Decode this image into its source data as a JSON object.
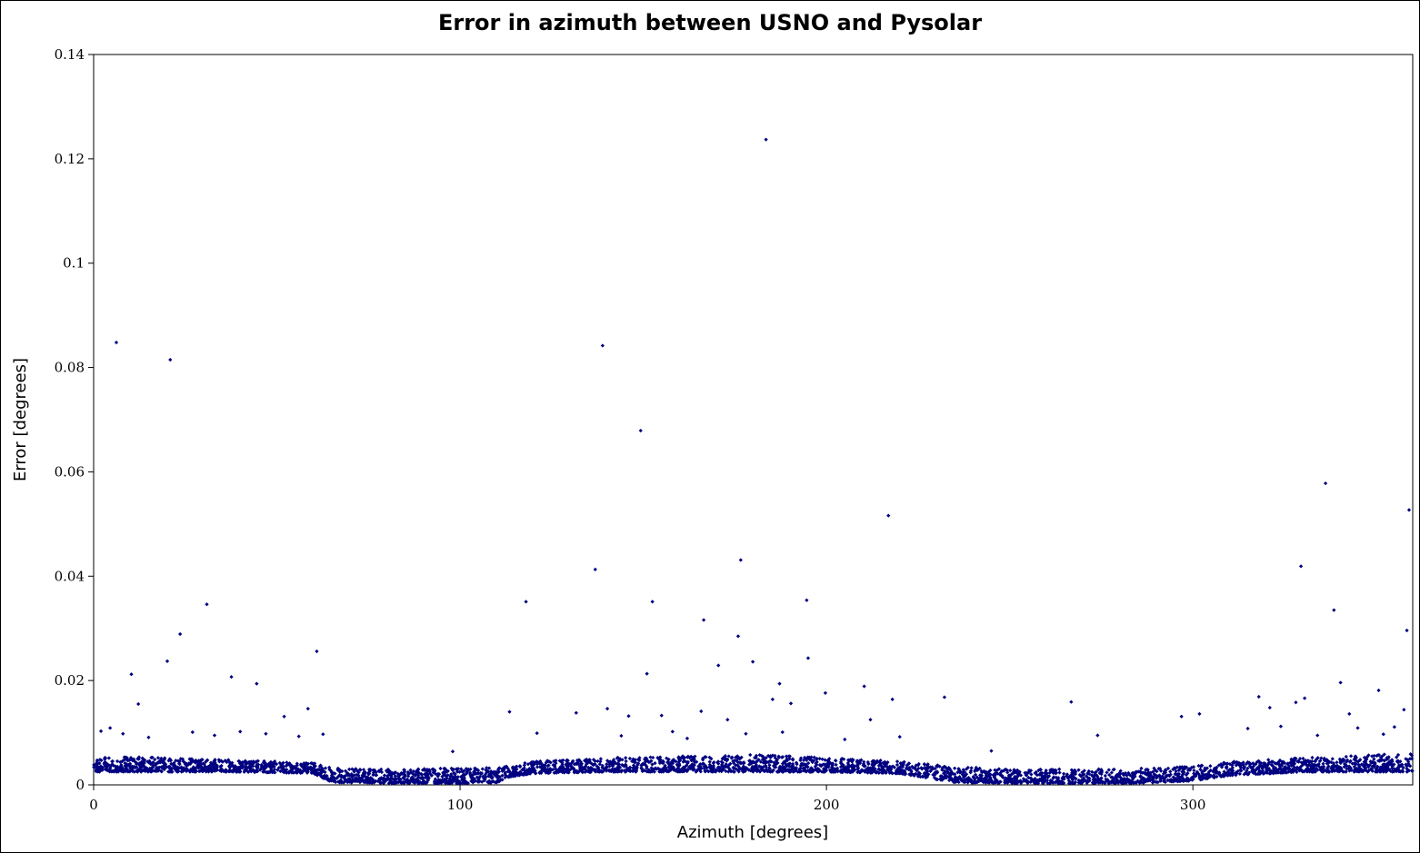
{
  "chart_data": {
    "type": "scatter",
    "title": "Error in azimuth between USNO and Pysolar",
    "xlabel": "Azimuth [degrees]",
    "ylabel": "Error [degrees]",
    "xlim": [
      0,
      360
    ],
    "ylim": [
      0,
      0.14
    ],
    "x_ticks": [
      0,
      100,
      200,
      300
    ],
    "x_tick_labels": [
      "0",
      "100",
      "200",
      "300"
    ],
    "y_ticks": [
      0,
      0.02,
      0.04,
      0.06,
      0.08,
      0.1,
      0.12,
      0.14
    ],
    "y_tick_labels": [
      "0",
      "0.02",
      "0.04",
      "0.06",
      "0.08",
      "0.1",
      "0.12",
      "0.14"
    ],
    "grid": false,
    "legend": "none",
    "marker_color": "#000080",
    "series": [
      {
        "x": [
          6.2,
          20.9,
          138.9,
          149.3,
          183.5,
          30.9,
          23.6,
          20.1,
          10.3,
          12.2,
          37.6,
          44.5,
          52.0,
          60.9,
          58.5,
          62.6,
          118.0,
          113.5,
          131.7,
          136.9,
          140.2,
          151.0,
          152.5,
          146.0,
          155.0,
          165.8,
          166.5,
          170.5,
          173.0,
          175.9,
          176.6,
          179.9,
          185.3,
          187.2,
          190.3,
          194.6,
          195.0,
          199.7,
          210.3,
          216.9,
          218.0,
          212.0,
          232.2,
          266.8,
          274.0,
          296.9,
          301.8,
          318.0,
          321.0,
          328.1,
          329.5,
          330.5,
          336.2,
          338.5,
          340.3,
          342.7,
          350.7,
          357.6,
          358.4,
          359.0,
          2.0,
          4.5,
          8.0,
          15.0,
          27.0,
          33.0,
          40.0,
          47.0,
          56.0,
          98.0,
          121.0,
          144.0,
          158.0,
          162.0,
          178.0,
          188.0,
          205.0,
          220.0,
          245.0,
          315.0,
          324.0,
          334.0,
          345.0,
          352.0,
          355.0
        ],
        "y": [
          0.0848,
          0.0815,
          0.0842,
          0.0679,
          0.1237,
          0.0346,
          0.0289,
          0.0237,
          0.0212,
          0.0155,
          0.0207,
          0.0194,
          0.0131,
          0.0256,
          0.0146,
          0.0097,
          0.0351,
          0.014,
          0.0138,
          0.0413,
          0.0146,
          0.0213,
          0.0351,
          0.0132,
          0.0133,
          0.0141,
          0.0316,
          0.0229,
          0.0125,
          0.0285,
          0.0431,
          0.0236,
          0.0164,
          0.0194,
          0.0156,
          0.0354,
          0.0243,
          0.0176,
          0.0189,
          0.0516,
          0.0164,
          0.0125,
          0.0168,
          0.0159,
          0.0095,
          0.0131,
          0.0136,
          0.0169,
          0.0148,
          0.0158,
          0.0419,
          0.0166,
          0.0578,
          0.0335,
          0.0196,
          0.0136,
          0.0181,
          0.0144,
          0.0296,
          0.0527,
          0.0103,
          0.0109,
          0.0098,
          0.0091,
          0.0101,
          0.0095,
          0.0102,
          0.0098,
          0.0093,
          0.0064,
          0.0099,
          0.0094,
          0.0102,
          0.0089,
          0.0098,
          0.0101,
          0.0087,
          0.0092,
          0.0065,
          0.0108,
          0.0112,
          0.0095,
          0.0109,
          0.0097,
          0.0111
        ]
      }
    ],
    "baseline_band": {
      "description_points": "dense band of points near error 0.001-0.006 across all azimuths",
      "x": [
        0,
        20,
        40,
        60,
        65,
        80,
        100,
        110,
        113,
        120,
        140,
        160,
        180,
        200,
        220,
        235,
        250,
        270,
        290,
        300,
        310,
        330,
        350,
        360
      ],
      "y_low": [
        0.0025,
        0.0025,
        0.0025,
        0.0022,
        0.0005,
        0.0003,
        0.0003,
        0.0004,
        0.0015,
        0.0022,
        0.0025,
        0.0025,
        0.0025,
        0.0025,
        0.0022,
        0.0005,
        0.0003,
        0.0003,
        0.0004,
        0.0008,
        0.0018,
        0.0025,
        0.0025,
        0.0025
      ],
      "y_high": [
        0.0055,
        0.0052,
        0.0048,
        0.0042,
        0.0032,
        0.003,
        0.0032,
        0.0033,
        0.0038,
        0.0045,
        0.0052,
        0.0055,
        0.0058,
        0.0052,
        0.0045,
        0.0035,
        0.003,
        0.003,
        0.0032,
        0.0036,
        0.0044,
        0.0052,
        0.0058,
        0.006
      ]
    }
  }
}
